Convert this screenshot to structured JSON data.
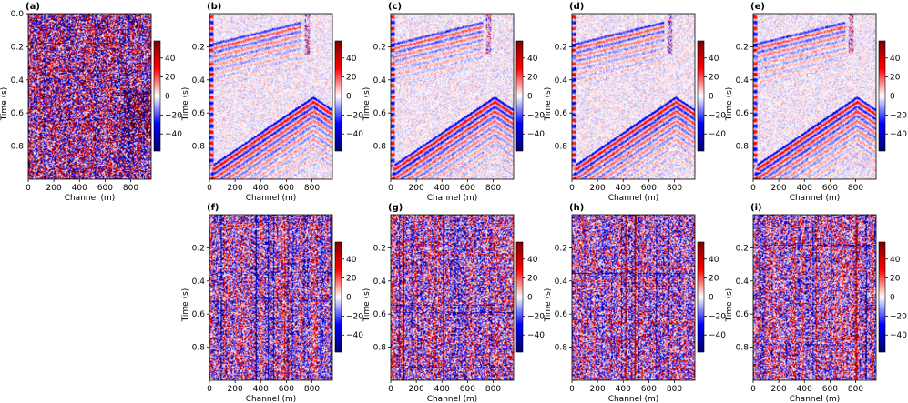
{
  "figure": {
    "colormap": {
      "low": "#05006a",
      "mid": "#ffffff",
      "high": "#7c0000"
    }
  },
  "chart_data": [
    {
      "type": "heatmap",
      "panel_label": "(a)",
      "xlabel": "Channel (m)",
      "ylabel": "Time (s)",
      "xlim": [
        0,
        960
      ],
      "ylim": [
        1.0,
        0.0
      ],
      "xticks": [
        0,
        200,
        400,
        600,
        800
      ],
      "yticks": [
        0.0,
        0.2,
        0.4,
        0.6,
        0.8
      ],
      "colorbar": {
        "ticks": [
          40,
          20,
          0,
          -20,
          -40
        ],
        "vmin": -58,
        "vmax": 58
      },
      "content": "noisy"
    },
    {
      "type": "heatmap",
      "panel_label": "(b)",
      "xlabel": "Channel (m)",
      "ylabel": "Time (s)",
      "xlim": [
        0,
        960
      ],
      "ylim": [
        1.0,
        0.0
      ],
      "xticks": [
        0,
        200,
        400,
        600,
        800
      ],
      "yticks": [
        0.2,
        0.4,
        0.6,
        0.8
      ],
      "colorbar": {
        "ticks": [
          40,
          20,
          0,
          -20,
          -40
        ],
        "vmin": -58,
        "vmax": 58
      },
      "content": "denoised"
    },
    {
      "type": "heatmap",
      "panel_label": "(c)",
      "xlabel": "Channel (m)",
      "ylabel": "Time (s)",
      "xlim": [
        0,
        960
      ],
      "ylim": [
        1.0,
        0.0
      ],
      "xticks": [
        0,
        200,
        400,
        600,
        800
      ],
      "yticks": [
        0.2,
        0.4,
        0.6,
        0.8
      ],
      "colorbar": {
        "ticks": [
          40,
          20,
          0,
          -20,
          -40
        ],
        "vmin": -58,
        "vmax": 58
      },
      "content": "denoised"
    },
    {
      "type": "heatmap",
      "panel_label": "(d)",
      "xlabel": "Channel (m)",
      "ylabel": "Time (s)",
      "xlim": [
        0,
        960
      ],
      "ylim": [
        1.0,
        0.0
      ],
      "xticks": [
        0,
        200,
        400,
        600,
        800
      ],
      "yticks": [
        0.2,
        0.4,
        0.6,
        0.8
      ],
      "colorbar": {
        "ticks": [
          40,
          20,
          0,
          -20,
          -40
        ],
        "vmin": -58,
        "vmax": 58
      },
      "content": "denoised"
    },
    {
      "type": "heatmap",
      "panel_label": "(e)",
      "xlabel": "Channel (m)",
      "ylabel": "Time (s)",
      "xlim": [
        0,
        960
      ],
      "ylim": [
        1.0,
        0.0
      ],
      "xticks": [
        0,
        200,
        400,
        600,
        800
      ],
      "yticks": [
        0.2,
        0.4,
        0.6,
        0.8
      ],
      "colorbar": {
        "ticks": [
          40,
          20,
          0,
          -20,
          -40
        ],
        "vmin": -58,
        "vmax": 58
      },
      "content": "denoised"
    },
    {
      "type": "heatmap",
      "panel_label": "(f)",
      "xlabel": "Channel (m)",
      "ylabel": "Time (s)",
      "xlim": [
        0,
        960
      ],
      "ylim": [
        1.0,
        0.0
      ],
      "xticks": [
        0,
        200,
        400,
        600,
        800
      ],
      "yticks": [
        0.2,
        0.4,
        0.6,
        0.8
      ],
      "colorbar": {
        "ticks": [
          40,
          20,
          0,
          -20,
          -40
        ],
        "vmin": -58,
        "vmax": 58
      },
      "content": "residual"
    },
    {
      "type": "heatmap",
      "panel_label": "(g)",
      "xlabel": "Channel (m)",
      "ylabel": "Time (s)",
      "xlim": [
        0,
        960
      ],
      "ylim": [
        1.0,
        0.0
      ],
      "xticks": [
        0,
        200,
        400,
        600,
        800
      ],
      "yticks": [
        0.2,
        0.4,
        0.6,
        0.8
      ],
      "colorbar": {
        "ticks": [
          40,
          20,
          0,
          -20,
          -40
        ],
        "vmin": -58,
        "vmax": 58
      },
      "content": "residual"
    },
    {
      "type": "heatmap",
      "panel_label": "(h)",
      "xlabel": "Channel (m)",
      "ylabel": "Time (s)",
      "xlim": [
        0,
        960
      ],
      "ylim": [
        1.0,
        0.0
      ],
      "xticks": [
        0,
        200,
        400,
        600,
        800
      ],
      "yticks": [
        0.2,
        0.4,
        0.6,
        0.8
      ],
      "colorbar": {
        "ticks": [
          40,
          20,
          0,
          -20,
          -40
        ],
        "vmin": -58,
        "vmax": 58
      },
      "content": "residual"
    },
    {
      "type": "heatmap",
      "panel_label": "(i)",
      "xlabel": "Channel (m)",
      "ylabel": "Time (s)",
      "xlim": [
        0,
        960
      ],
      "ylim": [
        1.0,
        0.0
      ],
      "xticks": [
        0,
        200,
        400,
        600,
        800
      ],
      "yticks": [
        0.2,
        0.4,
        0.6,
        0.8
      ],
      "colorbar": {
        "ticks": [
          40,
          20,
          0,
          -20,
          -40
        ],
        "vmin": -58,
        "vmax": 58
      },
      "content": "residual"
    }
  ]
}
